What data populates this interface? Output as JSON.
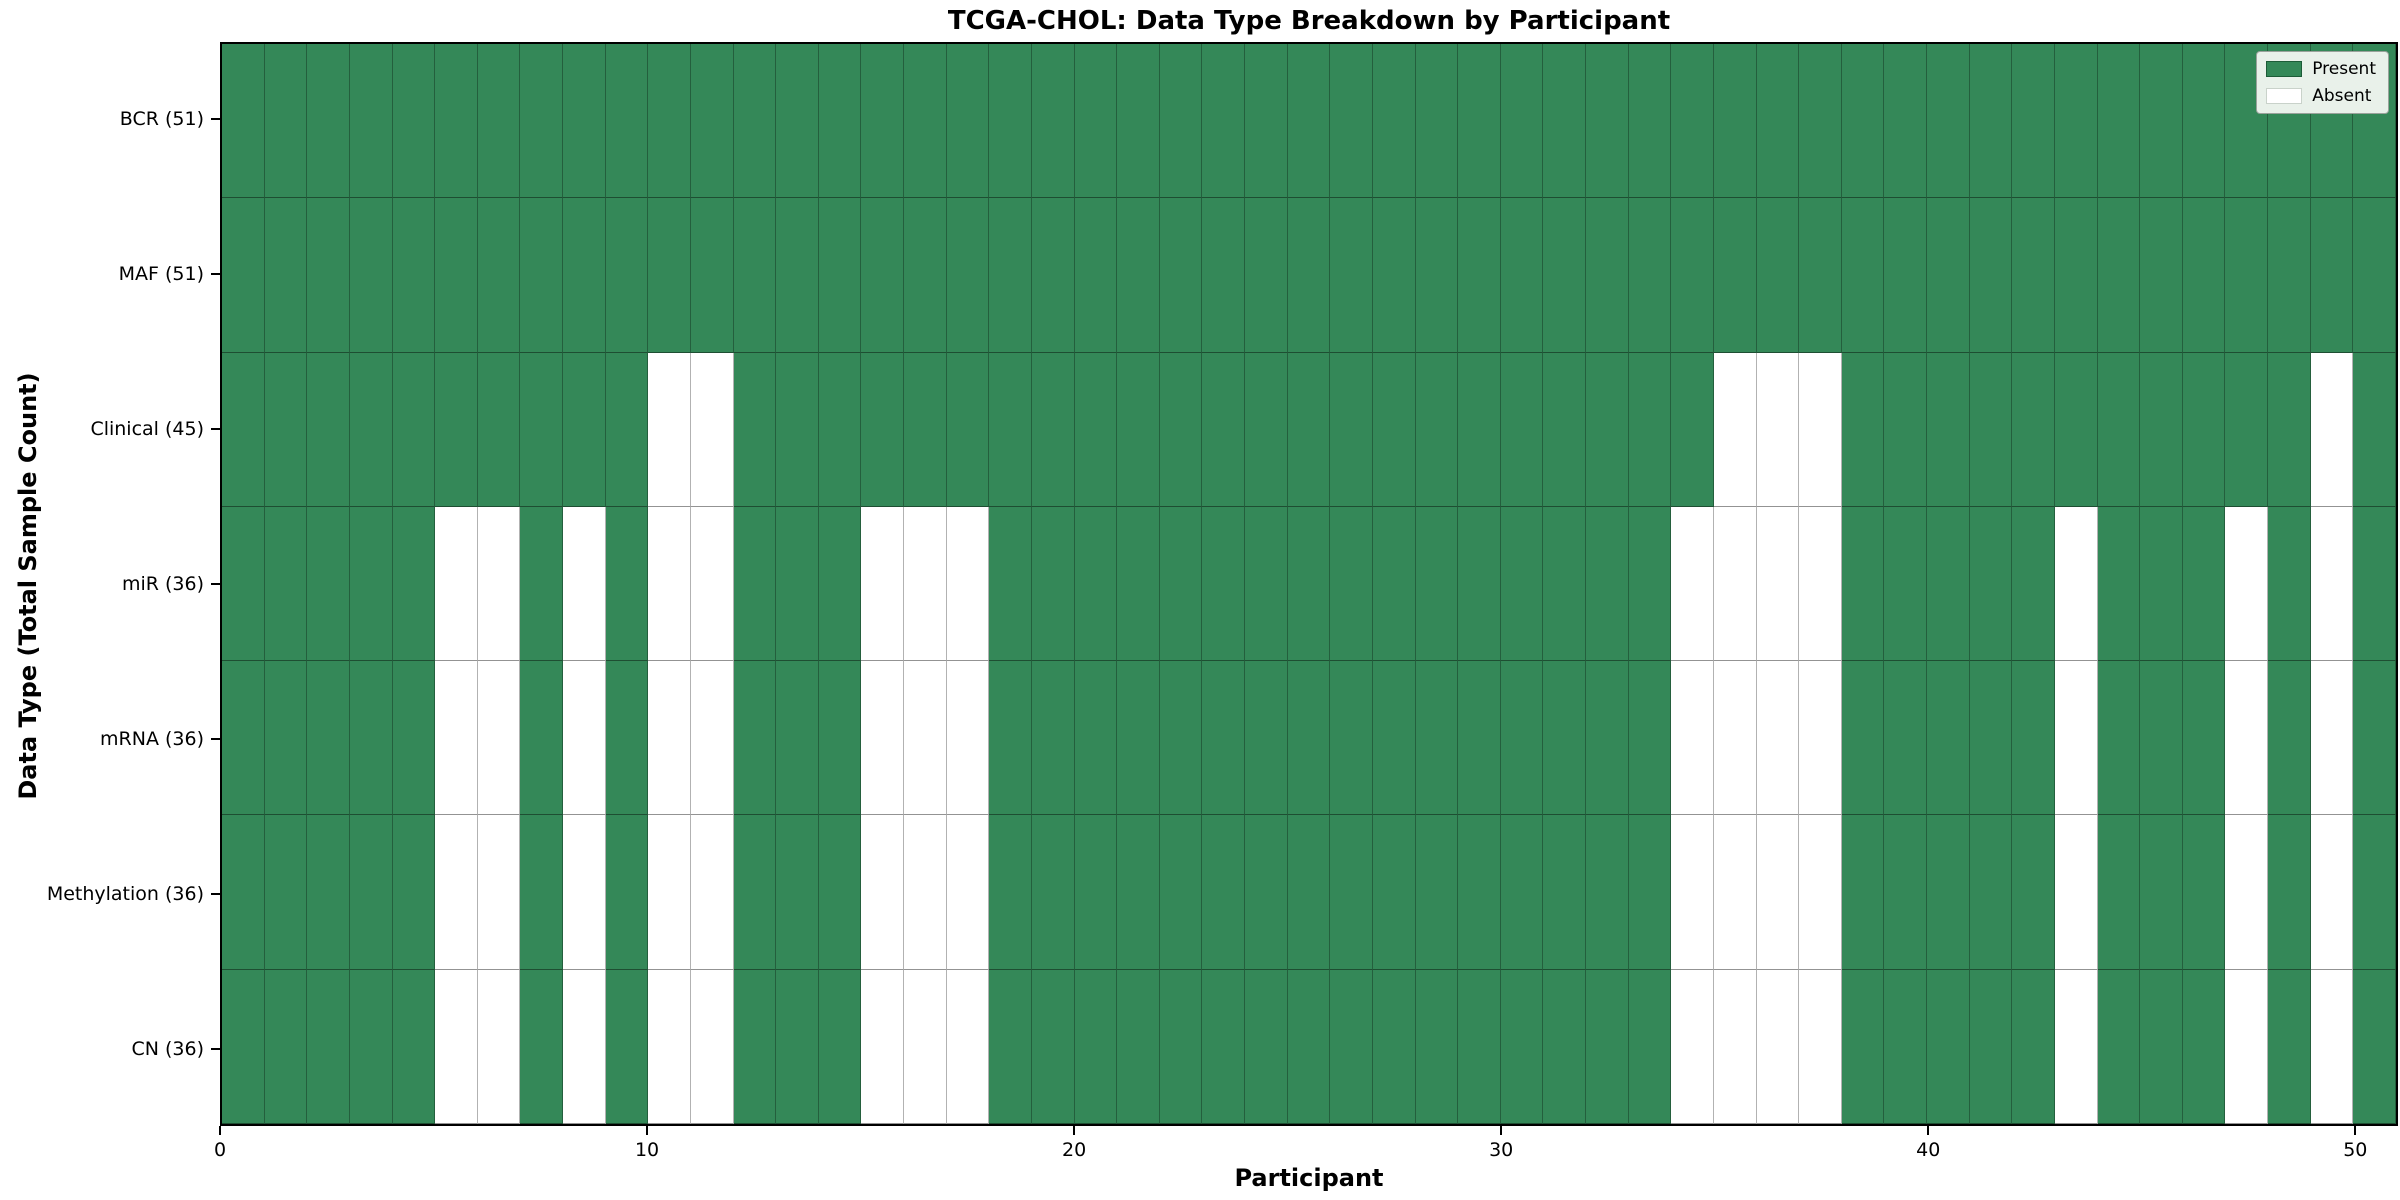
{
  "title": "TCGA-CHOL: Data Type Breakdown by Participant",
  "xlabel": "Participant",
  "ylabel": "Data Type (Total Sample Count)",
  "legend": {
    "present_label": "Present",
    "absent_label": "Absent"
  },
  "colors": {
    "present": "#348858",
    "absent": "#ffffff",
    "legend_bg": "#e9f1ea",
    "spine": "#000000"
  },
  "chart_data": {
    "type": "heatmap",
    "title": "TCGA-CHOL: Data Type Breakdown by Participant",
    "xlabel": "Participant",
    "ylabel": "Data Type (Total Sample Count)",
    "legend_entries": [
      "Present",
      "Absent"
    ],
    "legend_position": "upper right",
    "n_participants": 51,
    "x_range": [
      0,
      51
    ],
    "x_ticks": [
      0,
      10,
      20,
      30,
      40,
      50
    ],
    "states": {
      "present": 1,
      "absent": 0
    },
    "rows": [
      {
        "label": "BCR (51)",
        "total": 51,
        "absent_participants": []
      },
      {
        "label": "MAF (51)",
        "total": 51,
        "absent_participants": []
      },
      {
        "label": "Clinical (45)",
        "total": 45,
        "absent_participants": [
          10,
          11,
          35,
          36,
          37,
          49
        ]
      },
      {
        "label": "miR (36)",
        "total": 36,
        "absent_participants": [
          5,
          6,
          8,
          10,
          11,
          15,
          16,
          17,
          34,
          35,
          36,
          37,
          43,
          47,
          49
        ]
      },
      {
        "label": "mRNA (36)",
        "total": 36,
        "absent_participants": [
          5,
          6,
          8,
          10,
          11,
          15,
          16,
          17,
          34,
          35,
          36,
          37,
          43,
          47,
          49
        ]
      },
      {
        "label": "Methylation (36)",
        "total": 36,
        "absent_participants": [
          5,
          6,
          8,
          10,
          11,
          15,
          16,
          17,
          34,
          35,
          36,
          37,
          43,
          47,
          49
        ]
      },
      {
        "label": "CN (36)",
        "total": 36,
        "absent_participants": [
          5,
          6,
          8,
          10,
          11,
          15,
          16,
          17,
          34,
          35,
          36,
          37,
          43,
          47,
          49
        ]
      }
    ]
  }
}
